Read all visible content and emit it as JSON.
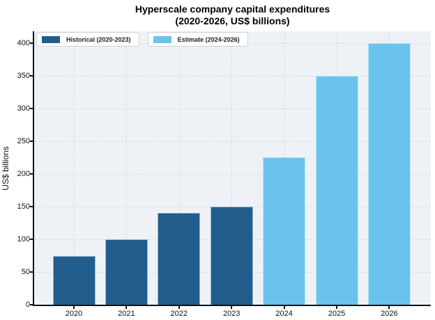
{
  "title": {
    "line1": "Hyperscale company capital expenditures",
    "line2": "(2020-2026, US$ billions)"
  },
  "ylabel": "US$ billions",
  "legend": {
    "position": "top-left",
    "items": [
      {
        "label": "Historical (2020-2023)",
        "color": "#205d8c"
      },
      {
        "label": "Estimate (2024-2026)",
        "color": "#6ac3ec"
      }
    ]
  },
  "chart_data": {
    "type": "bar",
    "title": "Hyperscale company capital expenditures (2020-2026, US$ billions)",
    "xlabel": "",
    "ylabel": "US$ billions",
    "categories": [
      "2020",
      "2021",
      "2022",
      "2023",
      "2024",
      "2025",
      "2026"
    ],
    "series": [
      {
        "name": "Historical (2020-2023)",
        "color": "#205d8c",
        "values": [
          75,
          100,
          140,
          150,
          null,
          null,
          null
        ]
      },
      {
        "name": "Estimate (2024-2026)",
        "color": "#6ac3ec",
        "values": [
          null,
          null,
          null,
          null,
          225,
          350,
          400
        ]
      }
    ],
    "yticks": [
      0,
      50,
      100,
      150,
      200,
      250,
      300,
      350,
      400
    ],
    "ylim": [
      0,
      418
    ],
    "grid": "dashed-both",
    "plot_background": "#eef2f6",
    "legend_position": "upper left"
  }
}
